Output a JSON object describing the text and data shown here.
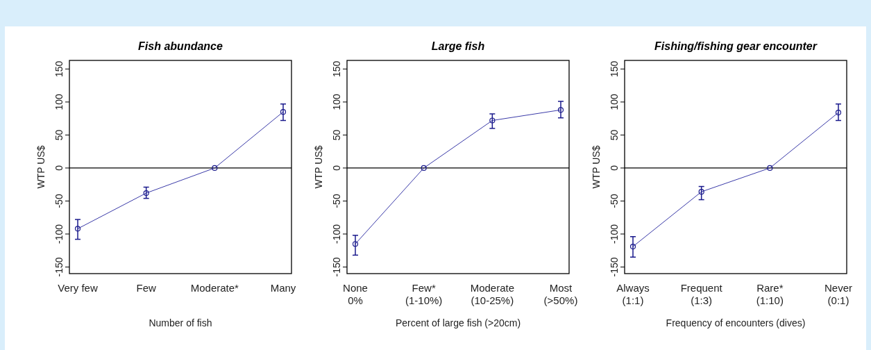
{
  "chart_data": [
    {
      "type": "line",
      "title": "Fish abundance",
      "xlabel": "Number of fish",
      "ylabel": "WTP US$",
      "categories": [
        "Very few",
        "Few",
        "Moderate*",
        "Many"
      ],
      "series": [
        {
          "color": "#3a3aa8",
          "values": [
            -92,
            -38,
            0,
            85
          ],
          "errors": [
            [
              -108,
              -78
            ],
            [
              -46,
              -29
            ],
            null,
            [
              72,
              97
            ]
          ]
        }
      ],
      "ylim": [
        -160,
        163
      ],
      "yticks": [
        -150,
        -100,
        -50,
        0,
        50,
        100,
        150
      ],
      "ref_lines": [
        {
          "axis": "y",
          "value": 0,
          "color": "#000000"
        }
      ],
      "marker": "circle"
    },
    {
      "type": "line",
      "title": "Large fish",
      "xlabel": "Percent of large fish (>20cm)",
      "ylabel": "WTP US$",
      "categories": [
        "None\n0%",
        "Few*\n(1-10%)",
        "Moderate\n(10-25%)",
        "Most\n(>50%)"
      ],
      "series": [
        {
          "color": "#3a3aa8",
          "values": [
            -115,
            0,
            72,
            88
          ],
          "errors": [
            [
              -132,
              -102
            ],
            null,
            [
              60,
              82
            ],
            [
              76,
              101
            ]
          ]
        }
      ],
      "ylim": [
        -160,
        163
      ],
      "yticks": [
        -150,
        -100,
        -50,
        0,
        50,
        100,
        150
      ],
      "ref_lines": [
        {
          "axis": "y",
          "value": 0,
          "color": "#000000"
        }
      ],
      "marker": "circle"
    },
    {
      "type": "line",
      "title": "Fishing/fishing gear encounter",
      "xlabel": "Frequency of encounters (dives)",
      "ylabel": "WTP US$",
      "categories": [
        "Always\n(1:1)",
        "Frequent\n(1:3)",
        "Rare*\n(1:10)",
        "Never\n(0:1)"
      ],
      "series": [
        {
          "color": "#3a3aa8",
          "values": [
            -119,
            -36,
            0,
            84
          ],
          "errors": [
            [
              -135,
              -104
            ],
            [
              -48,
              -28
            ],
            null,
            [
              72,
              97
            ]
          ]
        }
      ],
      "ylim": [
        -160,
        163
      ],
      "yticks": [
        -150,
        -100,
        -50,
        0,
        50,
        100,
        150
      ],
      "ref_lines": [
        {
          "axis": "y",
          "value": 0,
          "color": "#000000"
        }
      ],
      "marker": "circle"
    }
  ]
}
